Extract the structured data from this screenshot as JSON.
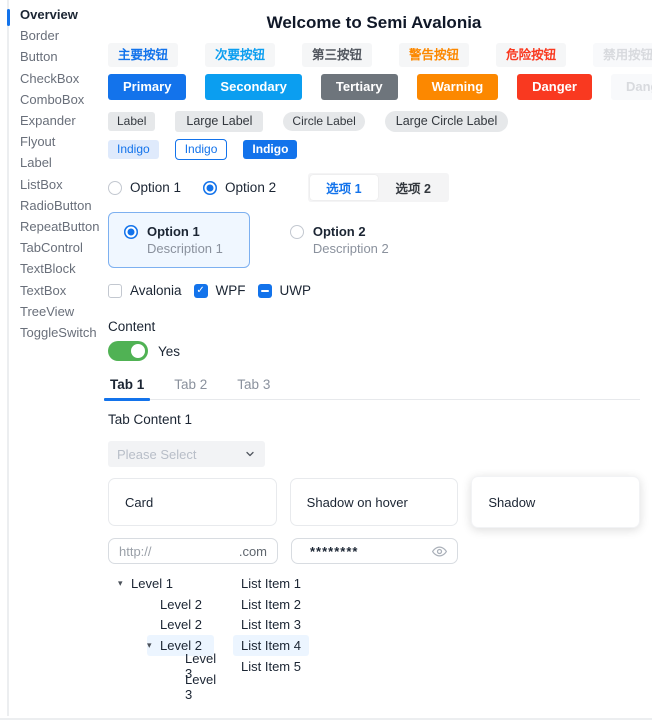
{
  "header": {
    "title": "Welcome to Semi Avalonia"
  },
  "sidebar": {
    "items": [
      {
        "label": "Overview",
        "active": true
      },
      {
        "label": "Border",
        "active": false
      },
      {
        "label": "Button",
        "active": false
      },
      {
        "label": "CheckBox",
        "active": false
      },
      {
        "label": "ComboBox",
        "active": false
      },
      {
        "label": "Expander",
        "active": false
      },
      {
        "label": "Flyout",
        "active": false
      },
      {
        "label": "Label",
        "active": false
      },
      {
        "label": "ListBox",
        "active": false
      },
      {
        "label": "RadioButton",
        "active": false
      },
      {
        "label": "RepeatButton",
        "active": false
      },
      {
        "label": "TabControl",
        "active": false
      },
      {
        "label": "TextBlock",
        "active": false
      },
      {
        "label": "TextBox",
        "active": false
      },
      {
        "label": "TreeView",
        "active": false
      },
      {
        "label": "ToggleSwitch",
        "active": false
      }
    ]
  },
  "buttons": {
    "light": [
      {
        "label": "主要按钮",
        "type": "primary"
      },
      {
        "label": "次要按钮",
        "type": "secondary"
      },
      {
        "label": "第三按钮",
        "type": "tertiary"
      },
      {
        "label": "警告按钮",
        "type": "warning"
      },
      {
        "label": "危险按钮",
        "type": "danger"
      },
      {
        "label": "禁用按钮",
        "type": "disabled"
      }
    ],
    "solid": [
      {
        "label": "Primary",
        "type": "primary"
      },
      {
        "label": "Secondary",
        "type": "secondary"
      },
      {
        "label": "Tertiary",
        "type": "tertiary"
      },
      {
        "label": "Warning",
        "type": "warning"
      },
      {
        "label": "Danger",
        "type": "danger"
      },
      {
        "label": "Danger",
        "type": "disabled"
      }
    ]
  },
  "tags": [
    {
      "label": "Label",
      "large": false,
      "circle": false
    },
    {
      "label": "Large Label",
      "large": true,
      "circle": false
    },
    {
      "label": "Circle Label",
      "large": false,
      "circle": true
    },
    {
      "label": "Large Circle Label",
      "large": true,
      "circle": true
    }
  ],
  "indigo_tags": [
    {
      "label": "Indigo",
      "variant": "lightv"
    },
    {
      "label": "Indigo",
      "variant": "outline"
    },
    {
      "label": "Indigo",
      "variant": "solidv"
    }
  ],
  "radios": [
    {
      "label": "Option 1",
      "checked": false
    },
    {
      "label": "Option 2",
      "checked": true
    }
  ],
  "segmented": [
    {
      "label": "选项 1",
      "selected": true
    },
    {
      "label": "选项 2",
      "selected": false
    }
  ],
  "radio_cards": [
    {
      "title": "Option 1",
      "description": "Description 1",
      "checked": true
    },
    {
      "title": "Option 2",
      "description": "Description 2",
      "checked": false
    }
  ],
  "checkboxes": [
    {
      "label": "Avalonia",
      "state": "unchecked"
    },
    {
      "label": "WPF",
      "state": "checked"
    },
    {
      "label": "UWP",
      "state": "indeterminate"
    }
  ],
  "toggle": {
    "label": "Content",
    "value_label": "Yes",
    "on": true
  },
  "tabs": {
    "items": [
      {
        "label": "Tab 1",
        "active": true
      },
      {
        "label": "Tab 2",
        "active": false
      },
      {
        "label": "Tab 3",
        "active": false
      }
    ],
    "content": "Tab Content 1"
  },
  "combobox": {
    "placeholder": "Please Select"
  },
  "cards": [
    {
      "label": "Card",
      "shadow": false
    },
    {
      "label": "Shadow on hover",
      "shadow": false
    },
    {
      "label": "Shadow",
      "shadow": true
    }
  ],
  "inputs": {
    "url": {
      "prefix": "http://",
      "suffix": ".com"
    },
    "password": {
      "value": "********"
    }
  },
  "tree": {
    "items": [
      {
        "label": "Level 1",
        "level": 0,
        "expander": true,
        "selected": false
      },
      {
        "label": "Level 2",
        "level": 1,
        "expander": false,
        "selected": false
      },
      {
        "label": "Level 2",
        "level": 1,
        "expander": false,
        "selected": false
      },
      {
        "label": "Level 2",
        "level": 1,
        "expander": true,
        "selected": true
      },
      {
        "label": "Level 3",
        "level": 2,
        "expander": false,
        "selected": false
      },
      {
        "label": "Level 3",
        "level": 2,
        "expander": false,
        "selected": false
      }
    ]
  },
  "list": {
    "items": [
      {
        "label": "List Item 1",
        "selected": false
      },
      {
        "label": "List Item 2",
        "selected": false
      },
      {
        "label": "List Item 3",
        "selected": false
      },
      {
        "label": "List Item 4",
        "selected": true
      },
      {
        "label": "List Item 5",
        "selected": false
      }
    ]
  },
  "colors": {
    "primary": "#1373eb",
    "secondary": "#0b9ef0",
    "tertiary": "#6e757c",
    "warning": "#fc8800",
    "danger": "#f93920",
    "success": "#50b254",
    "selection_bg": "#ecf5ff",
    "indigo_light_bg": "#dfeafc"
  }
}
